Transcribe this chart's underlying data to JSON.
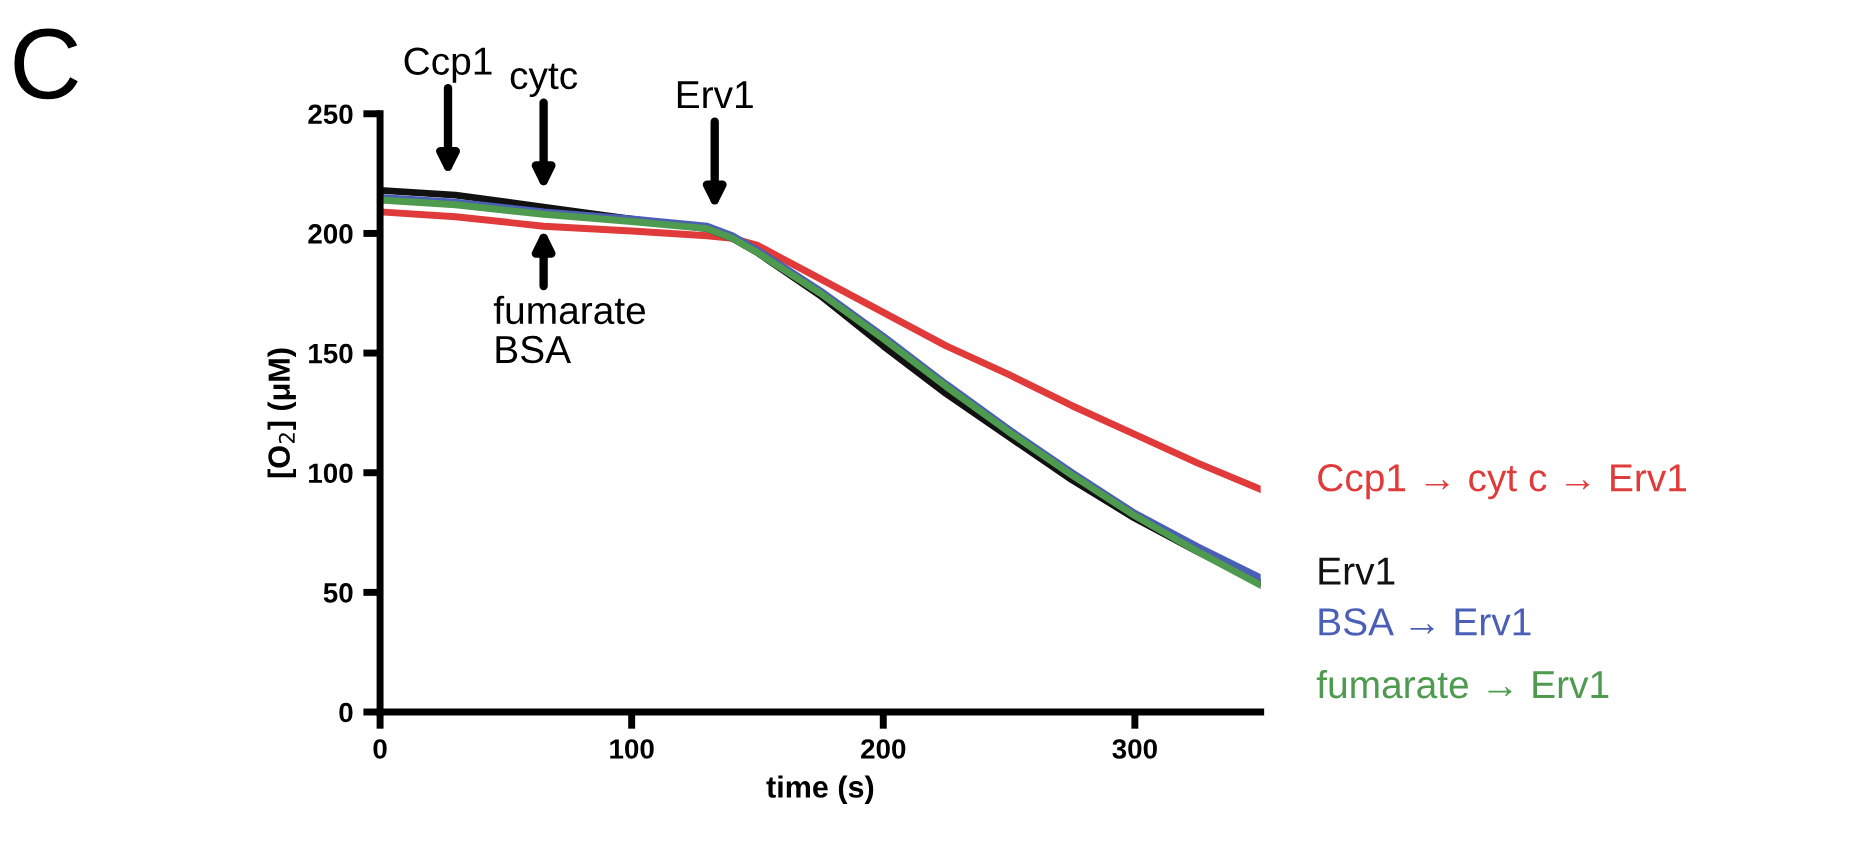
{
  "chart_data": {
    "type": "line",
    "xlabel": "time (s)",
    "ylabel": "[O$_{2}$] (μM)",
    "xlim": [
      0,
      350
    ],
    "ylim": [
      0,
      250
    ],
    "xticks": [
      0,
      100,
      200,
      300
    ],
    "yticks": [
      0,
      50,
      100,
      150,
      200,
      250
    ],
    "grid": false,
    "legend": false,
    "marker": "none",
    "line_style": "solid",
    "series": [
      {
        "name": "Ccp1 → cyt c → Erv1",
        "color": "#e03a3a",
        "x": [
          0,
          30,
          65,
          100,
          130,
          140,
          150,
          175,
          200,
          225,
          250,
          275,
          300,
          325,
          350
        ],
        "values": [
          209,
          207,
          203,
          201,
          199,
          198,
          195,
          181,
          167,
          153,
          141,
          128,
          116,
          104,
          93
        ]
      },
      {
        "name": "Erv1",
        "color": "#111111",
        "x": [
          0,
          30,
          65,
          100,
          130,
          140,
          150,
          175,
          200,
          225,
          250,
          275,
          300,
          325,
          350
        ],
        "values": [
          218,
          216,
          211,
          206,
          202,
          198,
          192,
          174,
          153,
          133,
          115,
          97,
          81,
          67,
          54
        ]
      },
      {
        "name": "BSA → Erv1",
        "color": "#4a5fb5",
        "x": [
          0,
          30,
          65,
          100,
          130,
          140,
          150,
          175,
          200,
          225,
          250,
          275,
          300,
          325,
          350
        ],
        "values": [
          215,
          213,
          209,
          206,
          203,
          199,
          193,
          176,
          157,
          137,
          118,
          100,
          83,
          69,
          56
        ]
      },
      {
        "name": "fumarate → Erv1",
        "color": "#4e9a4e",
        "x": [
          0,
          30,
          65,
          100,
          130,
          140,
          150,
          175,
          200,
          225,
          250,
          275,
          300,
          325,
          350
        ],
        "values": [
          214,
          212,
          208,
          205,
          202,
          198,
          192,
          175,
          156,
          136,
          117,
          99,
          82,
          67,
          53
        ]
      }
    ],
    "annotations": [
      "C",
      {
        "text": "Ccp1",
        "x": 27,
        "y": 218
      },
      {
        "text": "cytc",
        "x": 65,
        "y": 212
      },
      {
        "text": "Erv1",
        "x": 133,
        "y": 204
      },
      {
        "text": "fumarate\nBSA",
        "x": 65,
        "y": 206
      }
    ]
  }
}
